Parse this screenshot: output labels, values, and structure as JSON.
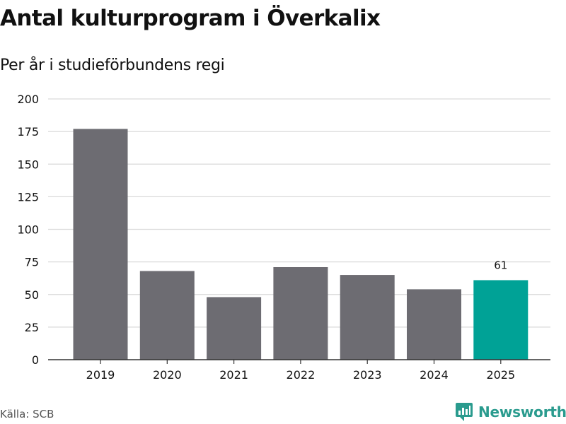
{
  "header": {
    "title": "Antal kulturprogram i Överkalix",
    "subtitle": "Per år i studieförbundens regi"
  },
  "footer": {
    "source": "Källa: SCB",
    "brand": "Newsworthy",
    "brand_icon": "newsworthy-logo-icon"
  },
  "colors": {
    "bar": "#6d6c72",
    "highlight": "#00a296",
    "grid": "#d9d9d9",
    "axis": "#333333",
    "brand": "#2a9b8e"
  },
  "chart_data": {
    "type": "bar",
    "title": "Antal kulturprogram i Överkalix",
    "subtitle": "Per år i studieförbundens regi",
    "xlabel": "",
    "ylabel": "",
    "categories": [
      "2019",
      "2020",
      "2021",
      "2022",
      "2023",
      "2024",
      "2025"
    ],
    "values": [
      177,
      68,
      48,
      71,
      65,
      54,
      61
    ],
    "highlight_index": 6,
    "data_labels": [
      {
        "index": 6,
        "text": "61"
      }
    ],
    "ylim": [
      0,
      200
    ],
    "yticks": [
      0,
      25,
      50,
      75,
      100,
      125,
      150,
      175,
      200
    ],
    "grid": true,
    "legend": "none"
  }
}
